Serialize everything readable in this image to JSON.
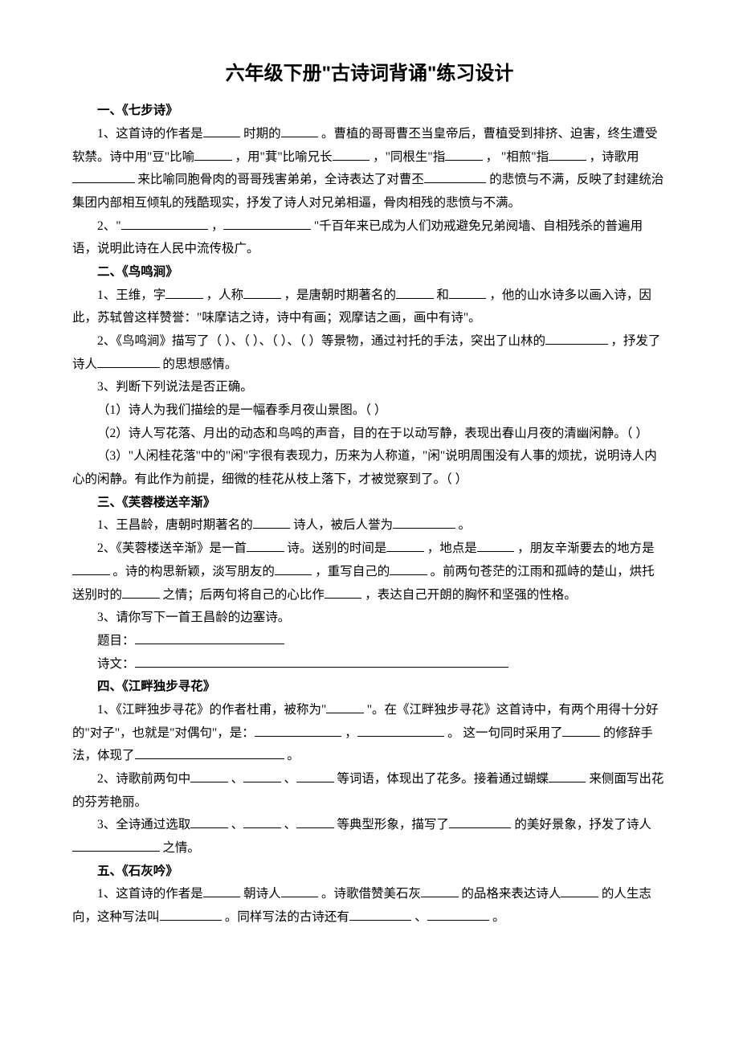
{
  "title": "六年级下册\"古诗词背诵\"练习设计",
  "sections": {
    "s1": {
      "header": "一、《七步诗》",
      "q1a": "1、这首诗的作者是",
      "q1b": "时期的",
      "q1c": "。曹植的哥哥曹丕当皇帝后，曹植受到排挤、迫害，终生遭受软禁。诗中用\"豆\"比喻",
      "q1d": "，用\"萁\"比喻兄长",
      "q1e": "，\"同根生\"指",
      "q1f": "，  \"相煎\"指",
      "q1g": "，诗歌用",
      "q1h": "来比喻同胞骨肉的哥哥残害弟弟，全诗表达了对曹丕",
      "q1i": "的悲愤与不满，反映了封建统治集团内部相互倾轧的残酷现实，抒发了诗人对兄弟相逼，骨肉相残的悲愤与不满。",
      "q2a": "2、\"",
      "q2b": "，",
      "q2c": "\"千百年来已成为人们劝戒避免兄弟阋墙、自相残杀的普遍用语，说明此诗在人民中流传极广。"
    },
    "s2": {
      "header": "二、《鸟鸣涧》",
      "q1a": "1、王维，字",
      "q1b": "，人称",
      "q1c": "，是唐朝时期著名的",
      "q1d": "和",
      "q1e": "，他的山水诗多以画入诗，因此，苏轼曾这样赞誉：\"味摩诘之诗，诗中有画；观摩诘之画，画中有诗\"。",
      "q2a": "2、《鸟鸣涧》描写了（    ）、（    ）、（    ）、（    ）等景物，通过衬托的手法，突出了山林的",
      "q2b": "，抒发了诗人",
      "q2c": "的思想感情。",
      "q3": "3、判断下列说法是否正确。",
      "q3_1": "（1）诗人为我们描绘的是一幅春季月夜山景图。（    ）",
      "q3_2": "（2）诗人写花落、月出的动态和鸟鸣的声音，目的在于以动写静，表现出春山月夜的清幽闲静。（    ）",
      "q3_3": "（3）\"人闲桂花落\"中的\"闲\"字很有表现力，历来为人称道，\"闲\"说明周围没有人事的烦扰，说明诗人内心的闲静。有此作为前提，细微的桂花从枝上落下，才被觉察到了。（    ）"
    },
    "s3": {
      "header": "三、《芙蓉楼送辛渐》",
      "q1a": "1、王昌龄，唐朝时期著名的",
      "q1b": "诗人，被后人誉为",
      "q1c": "。",
      "q2a": "2、《芙蓉楼送辛渐》是一首",
      "q2b": "诗。送别的时间是",
      "q2c": "，地点是",
      "q2d": "，朋友辛渐要去的地方是",
      "q2e": "。诗的构思新颖，淡写朋友的",
      "q2f": "，重写自己的",
      "q2g": "。前两句苍茫的江雨和孤峙的楚山，烘托送别时的",
      "q2h": "之情；后两句将自己的心比作",
      "q2i": "，表达自己开朗的胸怀和坚强的性格。",
      "q3": "3、请你写下一首王昌龄的边塞诗。",
      "q3_title": "题目：",
      "q3_text": "诗文："
    },
    "s4": {
      "header": "四、《江畔独步寻花》",
      "q1a": "1、《江畔独步寻花》的作者杜甫，被称为\"",
      "q1b": "\"。在《江畔独步寻花》这首诗中，有两个用得十分好的\"对子\"，也就是\"对偶句\"，是：",
      "q1c": "，",
      "q1d": "。 这一句同时采用了",
      "q1e": "的修辞手法，体现了",
      "q1f": "。",
      "q2a": "2、诗歌前两句中",
      "q2b": "、",
      "q2c": "、",
      "q2d": "等词语，体现出了花多。接着通过蝴蝶",
      "q2e": "来侧面写出花的芬芳艳丽。",
      "q3a": "3、全诗通过选取",
      "q3b": "、",
      "q3c": "、",
      "q3d": "等典型形象，描写了",
      "q3e": "的美好景象，抒发了诗人",
      "q3f": "之情。"
    },
    "s5": {
      "header": "五、《石灰吟》",
      "q1a": "1、这首诗的作者是",
      "q1b": "朝诗人",
      "q1c": "。诗歌借赞美石灰",
      "q1d": "的品格来表达诗人",
      "q1e": "的人生志向，这种写法叫",
      "q1f": "。同样写法的古诗还有",
      "q1g": "、",
      "q1h": "。"
    }
  }
}
